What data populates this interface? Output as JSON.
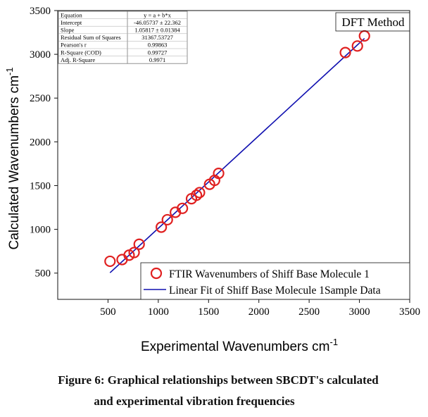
{
  "chart_data": {
    "type": "scatter",
    "title": "",
    "annotation": "DFT Method",
    "xlabel": "Experimental Wavenumbers cm",
    "xlabel_sup": "-1",
    "ylabel": "Calculated Wavenumbers cm",
    "ylabel_sup": "-1",
    "xlim": [
      0,
      3500
    ],
    "ylim": [
      200,
      3500
    ],
    "xticks": [
      500,
      1000,
      1500,
      2000,
      2500,
      3000,
      3500
    ],
    "yticks": [
      500,
      1000,
      1500,
      2000,
      2500,
      3000,
      3500
    ],
    "grid": false,
    "legend": "bottom-right",
    "series": [
      {
        "name": "FTIR Wavenumbers of Shiff Base Molecule 1",
        "kind": "scatter",
        "marker": "open-circle",
        "color": "#e02020",
        "x": [
          520,
          640,
          710,
          760,
          810,
          1030,
          1090,
          1170,
          1240,
          1330,
          1380,
          1410,
          1510,
          1560,
          1600,
          2860,
          2980,
          3050
        ],
        "y": [
          635,
          655,
          705,
          735,
          830,
          1025,
          1110,
          1195,
          1240,
          1350,
          1390,
          1420,
          1515,
          1560,
          1640,
          3020,
          3095,
          3210
        ]
      },
      {
        "name": "Linear Fit of Shiff Base Molecule 1Sample Data",
        "kind": "line",
        "color": "#1010b0",
        "intercept": -46.05737,
        "slope": 1.05817,
        "x_range": [
          520,
          3050
        ]
      }
    ],
    "stats_table": {
      "header": [
        "Equation",
        "y = a + b*x"
      ],
      "rows": [
        [
          "Intercept",
          "-46.05737 ± 22.362"
        ],
        [
          "Slope",
          "1.05817 ± 0.01384"
        ],
        [
          "Residual Sum of Squares",
          "31367.53727"
        ],
        [
          "Pearson's r",
          "0.99863"
        ],
        [
          "R-Square (COD)",
          "0.99727"
        ],
        [
          "Adj. R-Square",
          "0.9971"
        ]
      ]
    }
  },
  "caption": {
    "line1": "Figure 6: Graphical relationships between SBCDT's calculated",
    "line2": "and experimental vibration frequencies"
  }
}
